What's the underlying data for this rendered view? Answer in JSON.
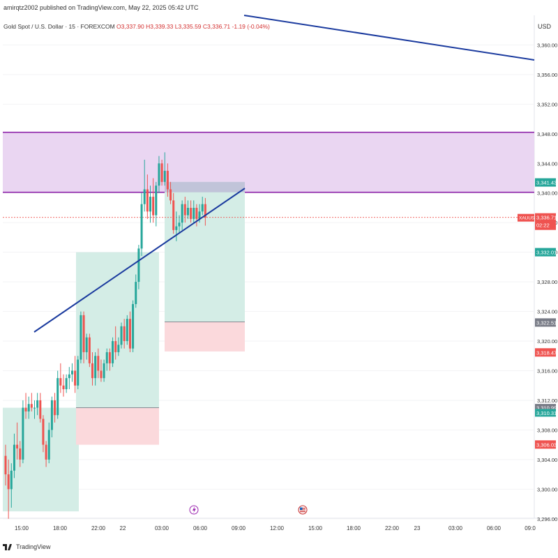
{
  "header": {
    "published_by": "amirqtz2002 published on TradingView.com, May 22, 2025 05:42 UTC",
    "symbol": "Gold Spot / U.S. Dollar · 15 · FOREXCOM",
    "ohlc": {
      "open": "O3,337.90",
      "high": "H3,339.33",
      "low": "L3,335.59",
      "close": "C3,336.71",
      "change": "-1.19 (-0.04%)"
    }
  },
  "axis": {
    "currency": "USD"
  },
  "footer": {
    "brand": "TradingView"
  },
  "colors": {
    "up": "#26a69a",
    "down": "#ef5350",
    "zone_fill": "#ead6f2",
    "zone_line": "#8e24aa",
    "trend_line": "#1a3a9e",
    "tp_fill": "#d4ede6",
    "sl_fill": "#fbd9dc",
    "price_tag": "#ef5350"
  },
  "chart_data": {
    "type": "candlestick",
    "symbol": "XAUUSD",
    "timeframe": "15",
    "ylim": [
      3295.5,
      3366
    ],
    "y_ticks": [
      "3,296.00",
      "3,300.00",
      "3,304.00",
      "3,308.00",
      "3,312.00",
      "3,316.00",
      "3,320.00",
      "3,324.00",
      "3,328.00",
      "3,332.00",
      "3,336.00",
      "3,340.00",
      "3,344.00",
      "3,348.00",
      "3,352.00",
      "3,356.00",
      "3,360.00"
    ],
    "x_ticks": [
      "15:00",
      "18:00",
      "22:00",
      "22",
      "03:00",
      "06:00",
      "09:00",
      "12:00",
      "15:00",
      "18:00",
      "22:00",
      "23",
      "03:00",
      "06:00",
      "09:0"
    ],
    "current_price": {
      "symbol": "XAUUSD",
      "value": "3,336.71",
      "countdown": "02:22"
    },
    "price_labels": [
      {
        "value": "3,341.43",
        "color": "#26a69a"
      },
      {
        "value": "3,332.01",
        "color": "#26a69a"
      },
      {
        "value": "3,322.51",
        "color": "#787b86"
      },
      {
        "value": "3,318.47",
        "color": "#ef5350"
      },
      {
        "value": "3,310.99",
        "color": "#787b86"
      },
      {
        "value": "3,310.31",
        "color": "#26a69a"
      },
      {
        "value": "3,306.03",
        "color": "#ef5350"
      }
    ],
    "zone": {
      "top": 3348.2,
      "bottom": 3340.1
    },
    "trend_lines": [
      {
        "from": [
          77,
          3318.8
        ],
        "to": [
          430,
          3341.3
        ]
      },
      {
        "from": [
          430,
          3364.3
        ],
        "to": [
          923,
          3358.6
        ]
      }
    ],
    "positions": [
      {
        "start": 0,
        "end": 139,
        "entry": 3311.0,
        "target": 3297.0,
        "stop": 3311.0,
        "status": "tp_only"
      },
      {
        "start": 131,
        "end": 281,
        "entry": 3311.0,
        "target": 3332.0,
        "stop": 3306.0
      },
      {
        "start": 291,
        "end": 433,
        "entry": 3322.6,
        "target": 3341.5,
        "stop": 3318.6
      }
    ],
    "candles": [
      [
        3304.5,
        3306.0,
        3300.5,
        3302.0
      ],
      [
        3302.0,
        3304.0,
        3296.0,
        3300.0
      ],
      [
        3300.0,
        3303.5,
        3297.5,
        3302.5
      ],
      [
        3302.5,
        3307.5,
        3301.5,
        3306.0
      ],
      [
        3306.0,
        3309.0,
        3304.0,
        3305.5
      ],
      [
        3305.5,
        3306.5,
        3303.0,
        3304.0
      ],
      [
        3304.0,
        3312.0,
        3303.5,
        3311.0
      ],
      [
        3311.0,
        3313.0,
        3309.5,
        3310.5
      ],
      [
        3310.5,
        3312.5,
        3309.5,
        3311.5
      ],
      [
        3311.5,
        3313.0,
        3310.5,
        3311.0
      ],
      [
        3311.0,
        3312.0,
        3309.5,
        3311.0
      ],
      [
        3311.0,
        3313.0,
        3310.0,
        3312.0
      ],
      [
        3312.0,
        3313.0,
        3309.0,
        3309.5
      ],
      [
        3309.5,
        3310.0,
        3305.0,
        3306.0
      ],
      [
        3306.0,
        3306.5,
        3303.0,
        3304.0
      ],
      [
        3304.0,
        3309.0,
        3303.5,
        3308.0
      ],
      [
        3308.0,
        3312.5,
        3307.0,
        3312.0
      ],
      [
        3312.0,
        3313.0,
        3309.0,
        3310.0
      ],
      [
        3310.0,
        3316.0,
        3309.5,
        3315.0
      ],
      [
        3315.0,
        3317.0,
        3313.0,
        3314.0
      ],
      [
        3314.0,
        3315.5,
        3312.5,
        3313.5
      ],
      [
        3313.5,
        3315.5,
        3313.0,
        3315.0
      ],
      [
        3315.0,
        3316.5,
        3313.5,
        3315.5
      ],
      [
        3315.5,
        3317.0,
        3314.5,
        3316.0
      ],
      [
        3316.0,
        3318.0,
        3313.0,
        3314.0
      ],
      [
        3314.0,
        3318.0,
        3313.5,
        3317.5
      ],
      [
        3317.5,
        3324.0,
        3317.0,
        3323.5
      ],
      [
        3323.5,
        3324.0,
        3317.0,
        3318.5
      ],
      [
        3318.5,
        3321.0,
        3317.5,
        3320.5
      ],
      [
        3320.5,
        3321.0,
        3316.5,
        3317.0
      ],
      [
        3317.0,
        3318.5,
        3314.0,
        3315.0
      ],
      [
        3315.0,
        3318.5,
        3314.0,
        3318.0
      ],
      [
        3318.0,
        3319.0,
        3315.0,
        3316.0
      ],
      [
        3316.0,
        3317.5,
        3314.5,
        3315.0
      ],
      [
        3315.0,
        3317.5,
        3314.5,
        3317.0
      ],
      [
        3317.0,
        3319.0,
        3316.0,
        3318.5
      ],
      [
        3318.5,
        3319.0,
        3316.0,
        3317.0
      ],
      [
        3317.0,
        3320.5,
        3316.5,
        3320.0
      ],
      [
        3320.0,
        3322.0,
        3317.5,
        3318.5
      ],
      [
        3318.5,
        3320.5,
        3318.0,
        3319.5
      ],
      [
        3319.5,
        3322.5,
        3319.0,
        3322.0
      ],
      [
        3322.0,
        3323.0,
        3319.0,
        3320.0
      ],
      [
        3320.0,
        3323.5,
        3319.5,
        3323.0
      ],
      [
        3323.0,
        3324.0,
        3318.5,
        3319.0
      ],
      [
        3319.0,
        3325.5,
        3318.5,
        3325.0
      ],
      [
        3325.0,
        3329.0,
        3324.5,
        3328.0
      ],
      [
        3328.0,
        3333.0,
        3327.0,
        3332.5
      ],
      [
        3332.5,
        3340.0,
        3331.5,
        3338.5
      ],
      [
        3338.5,
        3344.5,
        3337.5,
        3340.5
      ],
      [
        3340.5,
        3342.5,
        3336.5,
        3337.5
      ],
      [
        3337.5,
        3341.0,
        3336.0,
        3339.5
      ],
      [
        3339.5,
        3342.0,
        3336.0,
        3337.0
      ],
      [
        3337.0,
        3341.5,
        3335.5,
        3341.0
      ],
      [
        3341.0,
        3345.0,
        3340.0,
        3344.0
      ],
      [
        3344.0,
        3344.5,
        3341.0,
        3341.5
      ],
      [
        3341.5,
        3345.5,
        3341.0,
        3343.0
      ],
      [
        3343.0,
        3344.0,
        3339.5,
        3340.5
      ],
      [
        3340.5,
        3341.5,
        3338.5,
        3339.0
      ],
      [
        3339.0,
        3340.0,
        3334.5,
        3335.0
      ],
      [
        3335.0,
        3337.5,
        3333.5,
        3335.5
      ],
      [
        3335.5,
        3337.0,
        3334.5,
        3336.0
      ],
      [
        3336.0,
        3339.0,
        3335.0,
        3338.5
      ],
      [
        3338.5,
        3339.5,
        3336.0,
        3337.0
      ],
      [
        3337.0,
        3339.0,
        3336.5,
        3338.0
      ],
      [
        3338.0,
        3339.0,
        3336.0,
        3336.5
      ],
      [
        3336.5,
        3339.0,
        3336.0,
        3338.0
      ],
      [
        3338.0,
        3338.5,
        3335.5,
        3336.5
      ],
      [
        3336.5,
        3338.5,
        3336.0,
        3337.5
      ],
      [
        3337.5,
        3339.5,
        3337.0,
        3338.5
      ],
      [
        3338.5,
        3339.33,
        3335.59,
        3336.71
      ]
    ]
  }
}
